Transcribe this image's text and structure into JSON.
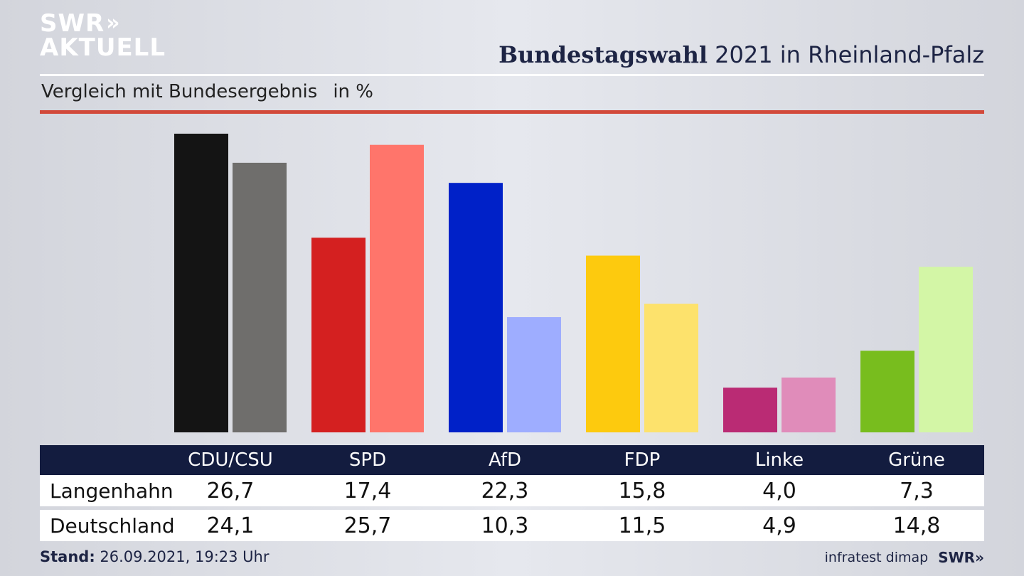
{
  "logo": {
    "line1": "SWR",
    "arrows": "»",
    "line2": "AKTUELL"
  },
  "header": {
    "title_bold": "Bundestagswahl",
    "title_rest": " 2021 in Rheinland-Pfalz"
  },
  "subtitle": {
    "text": "Vergleich mit Bundesergebnis",
    "unit": "in %"
  },
  "colors": {
    "row1": [
      "#141414",
      "#d42020",
      "#0021c8",
      "#fdca0e",
      "#ba2b74",
      "#78bd1e"
    ],
    "row2": [
      "#6f6e6c",
      "#ff756b",
      "#9eadff",
      "#fde26c",
      "#e08cba",
      "#d3f6a6"
    ]
  },
  "chart_data": {
    "type": "bar",
    "categories": [
      "CDU/CSU",
      "SPD",
      "AfD",
      "FDP",
      "Linke",
      "Grüne"
    ],
    "series": [
      {
        "name": "Langenhahn",
        "values": [
          26.7,
          17.4,
          22.3,
          15.8,
          4.0,
          7.3
        ]
      },
      {
        "name": "Deutschland",
        "values": [
          24.1,
          25.7,
          10.3,
          11.5,
          4.9,
          14.8
        ]
      }
    ],
    "display_values": {
      "Langenhahn": [
        "26,7",
        "17,4",
        "22,3",
        "15,8",
        "4,0",
        "7,3"
      ],
      "Deutschland": [
        "24,1",
        "25,7",
        "10,3",
        "11,5",
        "4,9",
        "14,8"
      ]
    },
    "title": "Bundestagswahl 2021 in Rheinland-Pfalz",
    "ylabel": "in %",
    "ylim": [
      0,
      26.7
    ],
    "grid": false,
    "legend": "table below chart"
  },
  "footer": {
    "stand_label": "Stand:",
    "stand_value": " 26.09.2021, 19:23 Uhr",
    "source": "infratest dimap",
    "brand": "SWR",
    "brand_arrows": "»"
  }
}
